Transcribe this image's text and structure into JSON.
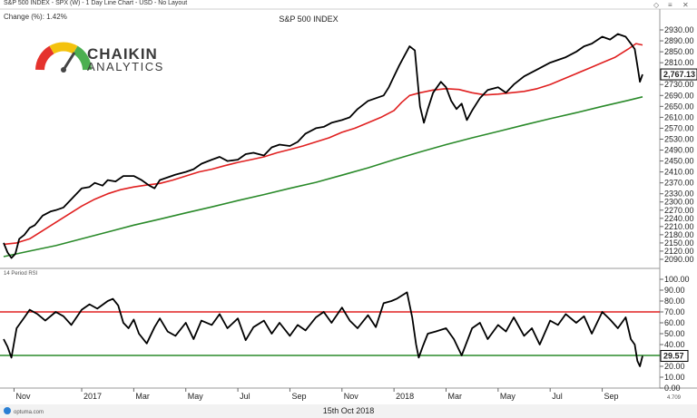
{
  "header": {
    "subtitle": "S&P 500 INDEX - SPX (W) - 1 Day Line Chart - USD - No Layout",
    "change_label": "Change (%): 1.42%",
    "window_icons": [
      "◇",
      "≡",
      "✕"
    ]
  },
  "logo": {
    "line1": "CHAIKIN",
    "line2": "ANALYTICS"
  },
  "footer": {
    "brand": "optuma.com",
    "date": "15th Oct 2018",
    "version": "4.709"
  },
  "chart_data": [
    {
      "type": "line",
      "title": "S&P 500 INDEX",
      "ylim": [
        2070,
        2940
      ],
      "y_ticks": [
        "2930.00",
        "2890.00",
        "2850.00",
        "2810.00",
        "2730.00",
        "2690.00",
        "2650.00",
        "2610.00",
        "2570.00",
        "2530.00",
        "2490.00",
        "2450.00",
        "2410.00",
        "2370.00",
        "2330.00",
        "2300.00",
        "2270.00",
        "2240.00",
        "2210.00",
        "2180.00",
        "2150.00",
        "2120.00",
        "2090.00"
      ],
      "last_value_label": "2,767.13",
      "x_ticks": [
        "Nov",
        "2017",
        "Mar",
        "May",
        "Jul",
        "Sep",
        "Nov",
        "2018",
        "Mar",
        "May",
        "Jul",
        "Sep"
      ],
      "x_tick_values": [
        0.4,
        3,
        5,
        7,
        9,
        11,
        13,
        15,
        17,
        19,
        21,
        23
      ],
      "series": [
        {
          "color": "#000000",
          "x": [
            0,
            0.15,
            0.3,
            0.45,
            0.6,
            0.8,
            1,
            1.2,
            1.5,
            1.8,
            2,
            2.3,
            2.5,
            2.8,
            3,
            3.3,
            3.5,
            3.8,
            4,
            4.3,
            4.6,
            5,
            5.3,
            5.6,
            5.8,
            6,
            6.3,
            6.6,
            7,
            7.3,
            7.6,
            8,
            8.3,
            8.6,
            9,
            9.3,
            9.6,
            10,
            10.3,
            10.6,
            11,
            11.3,
            11.6,
            12,
            12.3,
            12.6,
            13,
            13.3,
            13.6,
            14,
            14.3,
            14.6,
            14.8,
            15,
            15.2,
            15.4,
            15.6,
            15.8,
            15.9,
            16,
            16.15,
            16.3,
            16.5,
            16.8,
            17,
            17.2,
            17.4,
            17.6,
            17.8,
            18,
            18.3,
            18.6,
            19,
            19.3,
            19.6,
            20,
            20.3,
            20.6,
            21,
            21.3,
            21.6,
            22,
            22.3,
            22.6,
            23,
            23.3,
            23.6,
            23.9,
            24.1,
            24.25,
            24.35,
            24.45,
            24.55
          ],
          "y": [
            2150,
            2115,
            2095,
            2110,
            2165,
            2180,
            2205,
            2215,
            2250,
            2265,
            2270,
            2280,
            2300,
            2330,
            2350,
            2355,
            2370,
            2360,
            2380,
            2375,
            2395,
            2395,
            2380,
            2360,
            2350,
            2380,
            2390,
            2400,
            2410,
            2420,
            2440,
            2455,
            2465,
            2450,
            2455,
            2475,
            2480,
            2470,
            2500,
            2510,
            2505,
            2520,
            2550,
            2570,
            2575,
            2590,
            2600,
            2610,
            2640,
            2670,
            2680,
            2690,
            2720,
            2760,
            2800,
            2835,
            2870,
            2855,
            2750,
            2650,
            2590,
            2640,
            2700,
            2740,
            2720,
            2670,
            2640,
            2660,
            2600,
            2635,
            2680,
            2710,
            2720,
            2700,
            2730,
            2760,
            2775,
            2790,
            2810,
            2820,
            2830,
            2850,
            2870,
            2880,
            2905,
            2895,
            2915,
            2905,
            2880,
            2860,
            2800,
            2740,
            2767.13
          ]
        },
        {
          "color": "#e02020",
          "x": [
            0,
            0.5,
            1,
            1.5,
            2,
            2.5,
            3,
            3.5,
            4,
            4.5,
            5,
            5.5,
            6,
            6.5,
            7,
            7.5,
            8,
            8.5,
            9,
            9.5,
            10,
            10.5,
            11,
            11.5,
            12,
            12.5,
            13,
            13.5,
            14,
            14.5,
            15,
            15.3,
            15.6,
            16,
            16.5,
            17,
            17.5,
            18,
            18.5,
            19,
            19.5,
            20,
            20.5,
            21,
            21.5,
            22,
            22.5,
            23,
            23.5,
            24,
            24.3,
            24.55
          ],
          "y": [
            2145,
            2150,
            2165,
            2195,
            2225,
            2255,
            2285,
            2310,
            2330,
            2345,
            2355,
            2362,
            2368,
            2380,
            2395,
            2410,
            2420,
            2433,
            2445,
            2455,
            2465,
            2480,
            2492,
            2505,
            2520,
            2535,
            2555,
            2570,
            2590,
            2610,
            2635,
            2665,
            2690,
            2700,
            2710,
            2715,
            2712,
            2700,
            2692,
            2695,
            2700,
            2705,
            2715,
            2730,
            2750,
            2770,
            2790,
            2810,
            2830,
            2860,
            2880,
            2875
          ]
        },
        {
          "color": "#2a8a2a",
          "x": [
            0,
            1,
            2,
            3,
            4,
            5,
            6,
            7,
            8,
            9,
            10,
            11,
            12,
            13,
            14,
            15,
            16,
            17,
            18,
            19,
            20,
            21,
            22,
            23,
            24,
            24.55
          ],
          "y": [
            2100,
            2120,
            2140,
            2165,
            2190,
            2215,
            2237,
            2260,
            2282,
            2305,
            2327,
            2350,
            2372,
            2398,
            2425,
            2455,
            2483,
            2510,
            2535,
            2558,
            2582,
            2605,
            2627,
            2650,
            2672,
            2685
          ]
        }
      ]
    },
    {
      "type": "line",
      "title": "14 Period RSI",
      "ylim": [
        0,
        105
      ],
      "y_ticks": [
        "100.00",
        "90.00",
        "80.00",
        "70.00",
        "60.00",
        "50.00",
        "40.00",
        "30.00",
        "20.00",
        "10.00",
        "0.00"
      ],
      "last_value_label": "29.57",
      "levels": [
        70,
        30
      ],
      "series": [
        {
          "color": "#000000",
          "x": [
            0,
            0.15,
            0.3,
            0.5,
            0.8,
            1,
            1.3,
            1.6,
            2,
            2.3,
            2.6,
            3,
            3.3,
            3.6,
            4,
            4.2,
            4.4,
            4.6,
            4.8,
            5,
            5.2,
            5.5,
            5.8,
            6,
            6.3,
            6.6,
            7,
            7.3,
            7.6,
            8,
            8.3,
            8.6,
            9,
            9.3,
            9.6,
            10,
            10.3,
            10.6,
            11,
            11.3,
            11.6,
            12,
            12.3,
            12.6,
            13,
            13.3,
            13.6,
            14,
            14.3,
            14.6,
            14.9,
            15.1,
            15.3,
            15.5,
            15.7,
            15.85,
            15.95,
            16.1,
            16.3,
            16.6,
            17,
            17.3,
            17.6,
            18,
            18.3,
            18.6,
            19,
            19.3,
            19.6,
            20,
            20.3,
            20.6,
            21,
            21.3,
            21.6,
            22,
            22.3,
            22.6,
            23,
            23.3,
            23.6,
            23.9,
            24.1,
            24.25,
            24.35,
            24.45,
            24.55
          ],
          "y": [
            45,
            38,
            28,
            55,
            65,
            72,
            68,
            62,
            70,
            66,
            58,
            72,
            77,
            73,
            80,
            82,
            76,
            60,
            55,
            63,
            50,
            41,
            56,
            64,
            52,
            48,
            60,
            45,
            62,
            58,
            68,
            55,
            64,
            44,
            56,
            62,
            50,
            60,
            48,
            58,
            53,
            65,
            70,
            60,
            74,
            62,
            55,
            67,
            56,
            78,
            80,
            82,
            85,
            88,
            65,
            40,
            28,
            38,
            50,
            52,
            55,
            45,
            30,
            55,
            60,
            45,
            58,
            52,
            65,
            48,
            55,
            40,
            62,
            58,
            68,
            60,
            66,
            50,
            70,
            63,
            55,
            65,
            45,
            40,
            25,
            20,
            29.57
          ]
        }
      ]
    }
  ]
}
